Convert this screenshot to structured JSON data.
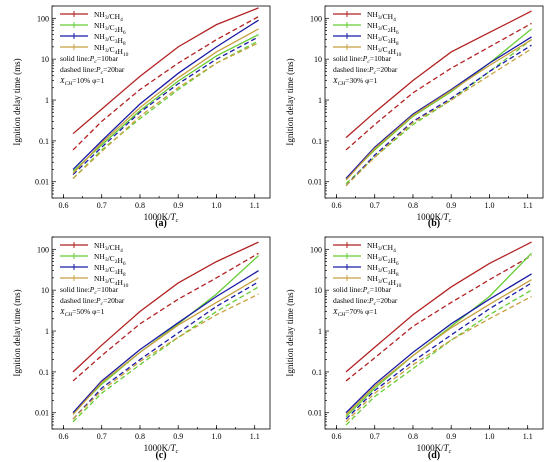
{
  "chart_data": [
    {
      "type": "line",
      "panel_label": "(a)",
      "xlabel": "1000K/T_c",
      "ylabel": "Ignition delay time (ms)",
      "xlim": [
        0.57,
        1.14
      ],
      "xticks": [
        "0.6",
        "0.7",
        "0.8",
        "0.9",
        "1.0",
        "1.1"
      ],
      "yscale": "log",
      "ylim": [
        0.004,
        200
      ],
      "yticks": [
        "0.01",
        "0.1",
        "1",
        "10",
        "100"
      ],
      "legend": [
        "NH3/CH4",
        "NH3/C2H6",
        "NH3/C3H8",
        "NH3/C4H10"
      ],
      "notes": [
        "solid line:Pc=10bar",
        "dashed line:Pc=20bar",
        "XCH=10%  φ=1"
      ],
      "x": [
        0.625,
        0.7,
        0.8,
        0.9,
        1.0,
        1.11
      ],
      "series": [
        {
          "name": "NH3/CH4",
          "style": "solid",
          "color": "#b22222",
          "values": [
            0.15,
            0.6,
            3.8,
            20,
            70,
            180
          ]
        },
        {
          "name": "NH3/CH4",
          "style": "dashed",
          "color": "#b22222",
          "values": [
            0.06,
            0.3,
            1.8,
            8,
            30,
            110
          ]
        },
        {
          "name": "NH3/C2H6",
          "style": "solid",
          "color": "#66cc33",
          "values": [
            0.018,
            0.08,
            0.55,
            2.9,
            12,
            40
          ]
        },
        {
          "name": "NH3/C2H6",
          "style": "dashed",
          "color": "#66cc33",
          "values": [
            0.012,
            0.06,
            0.35,
            1.8,
            8,
            28
          ]
        },
        {
          "name": "NH3/C3H8",
          "style": "solid",
          "color": "#1a1aa6",
          "values": [
            0.02,
            0.1,
            0.8,
            4.5,
            20,
            90
          ]
        },
        {
          "name": "NH3/C3H8",
          "style": "dashed",
          "color": "#1a1aa6",
          "values": [
            0.015,
            0.07,
            0.5,
            2.5,
            10,
            35
          ]
        },
        {
          "name": "NH3/C4H10",
          "style": "solid",
          "color": "#c8a040",
          "values": [
            0.016,
            0.09,
            0.65,
            3.5,
            15,
            55
          ]
        },
        {
          "name": "NH3/C4H10",
          "style": "dashed",
          "color": "#c8a040",
          "values": [
            0.012,
            0.055,
            0.4,
            2,
            8,
            25
          ]
        }
      ]
    },
    {
      "type": "line",
      "panel_label": "(b)",
      "xlabel": "1000K/T_c",
      "ylabel": "Ignition delay time (ms)",
      "xlim": [
        0.57,
        1.14
      ],
      "xticks": [
        "0.6",
        "0.7",
        "0.8",
        "0.9",
        "1.0",
        "1.1"
      ],
      "yscale": "log",
      "ylim": [
        0.004,
        200
      ],
      "yticks": [
        "0.01",
        "0.1",
        "1",
        "10",
        "100"
      ],
      "legend": [
        "NH3/CH4",
        "NH3/C2H6",
        "NH3/C3H8",
        "NH3/C4H10"
      ],
      "notes": [
        "solid line:Pc=10bar",
        "dashed line:Pc=20bar",
        "XCH=30%  φ=1"
      ],
      "x": [
        0.625,
        0.7,
        0.8,
        0.9,
        1.0,
        1.11
      ],
      "series": [
        {
          "name": "NH3/CH4",
          "style": "solid",
          "color": "#b22222",
          "values": [
            0.12,
            0.5,
            3,
            15,
            45,
            150
          ]
        },
        {
          "name": "NH3/CH4",
          "style": "dashed",
          "color": "#b22222",
          "values": [
            0.06,
            0.25,
            1.5,
            6,
            20,
            75
          ]
        },
        {
          "name": "NH3/C2H6",
          "style": "solid",
          "color": "#66cc33",
          "values": [
            0.012,
            0.06,
            0.4,
            1.6,
            8,
            55
          ]
        },
        {
          "name": "NH3/C2H6",
          "style": "dashed",
          "color": "#66cc33",
          "values": [
            0.009,
            0.04,
            0.25,
            1,
            5,
            30
          ]
        },
        {
          "name": "NH3/C3H8",
          "style": "solid",
          "color": "#1a1aa6",
          "values": [
            0.012,
            0.07,
            0.45,
            1.8,
            8,
            35
          ]
        },
        {
          "name": "NH3/C3H8",
          "style": "dashed",
          "color": "#1a1aa6",
          "values": [
            0.008,
            0.045,
            0.3,
            1.1,
            5,
            22
          ]
        },
        {
          "name": "NH3/C4H10",
          "style": "solid",
          "color": "#c8a040",
          "values": [
            0.011,
            0.065,
            0.42,
            1.7,
            7,
            30
          ]
        },
        {
          "name": "NH3/C4H10",
          "style": "dashed",
          "color": "#c8a040",
          "values": [
            0.008,
            0.04,
            0.28,
            1,
            4,
            18
          ]
        }
      ]
    },
    {
      "type": "line",
      "panel_label": "(c)",
      "xlabel": "1000K/T_c",
      "ylabel": "Ignition delay time (ms)",
      "xlim": [
        0.57,
        1.14
      ],
      "xticks": [
        "0.6",
        "0.7",
        "0.8",
        "0.9",
        "1.0",
        "1.1"
      ],
      "yscale": "log",
      "ylim": [
        0.004,
        200
      ],
      "yticks": [
        "0.01",
        "0.1",
        "1",
        "10",
        "100"
      ],
      "legend": [
        "NH3/CH4",
        "NH3/C2H6",
        "NH3/C3H8",
        "NH3/C4H10"
      ],
      "notes": [
        "solid line:Pc=10bar",
        "dashed line:Pc=20bar",
        "XCH=50%  φ=1"
      ],
      "x": [
        0.625,
        0.7,
        0.8,
        0.9,
        1.0,
        1.11
      ],
      "series": [
        {
          "name": "NH3/CH4",
          "style": "solid",
          "color": "#b22222",
          "values": [
            0.1,
            0.45,
            3,
            15,
            50,
            150
          ]
        },
        {
          "name": "NH3/CH4",
          "style": "dashed",
          "color": "#b22222",
          "values": [
            0.06,
            0.25,
            1.5,
            6,
            20,
            80
          ]
        },
        {
          "name": "NH3/C2H6",
          "style": "solid",
          "color": "#66cc33",
          "values": [
            0.01,
            0.05,
            0.3,
            1.5,
            8,
            70
          ]
        },
        {
          "name": "NH3/C2H6",
          "style": "dashed",
          "color": "#66cc33",
          "values": [
            0.006,
            0.03,
            0.15,
            0.7,
            3,
            12
          ]
        },
        {
          "name": "NH3/C3H8",
          "style": "solid",
          "color": "#1a1aa6",
          "values": [
            0.01,
            0.06,
            0.35,
            1.6,
            7,
            30
          ]
        },
        {
          "name": "NH3/C3H8",
          "style": "dashed",
          "color": "#1a1aa6",
          "values": [
            0.007,
            0.04,
            0.2,
            0.9,
            4,
            16
          ]
        },
        {
          "name": "NH3/C4H10",
          "style": "solid",
          "color": "#c8a040",
          "values": [
            0.009,
            0.055,
            0.3,
            1.4,
            5,
            20
          ]
        },
        {
          "name": "NH3/C4H10",
          "style": "dashed",
          "color": "#c8a040",
          "values": [
            0.007,
            0.035,
            0.18,
            0.7,
            2.5,
            8
          ]
        }
      ]
    },
    {
      "type": "line",
      "panel_label": "(d)",
      "xlabel": "1000K/T_c",
      "ylabel": "Ignition delay time (ms)",
      "xlim": [
        0.57,
        1.14
      ],
      "xticks": [
        "0.6",
        "0.7",
        "0.8",
        "0.9",
        "1.0",
        "1.1"
      ],
      "yscale": "log",
      "ylim": [
        0.004,
        200
      ],
      "yticks": [
        "0.01",
        "0.1",
        "1",
        "10",
        "100"
      ],
      "legend": [
        "NH3/CH4",
        "NH3/C2H6",
        "NH3/C3H8",
        "NH3/C4H10"
      ],
      "notes": [
        "solid line:Pc=10bar",
        "dashed line:Pc=20bar",
        "XCH=70%  φ=1"
      ],
      "x": [
        0.625,
        0.7,
        0.8,
        0.9,
        1.0,
        1.11
      ],
      "series": [
        {
          "name": "NH3/CH4",
          "style": "solid",
          "color": "#b22222",
          "values": [
            0.1,
            0.4,
            2.5,
            12,
            45,
            150
          ]
        },
        {
          "name": "NH3/CH4",
          "style": "dashed",
          "color": "#b22222",
          "values": [
            0.06,
            0.22,
            1.3,
            5,
            18,
            70
          ]
        },
        {
          "name": "NH3/C2H6",
          "style": "solid",
          "color": "#66cc33",
          "values": [
            0.008,
            0.04,
            0.25,
            1.3,
            7,
            80
          ]
        },
        {
          "name": "NH3/C2H6",
          "style": "dashed",
          "color": "#66cc33",
          "values": [
            0.005,
            0.025,
            0.12,
            0.6,
            2.5,
            10
          ]
        },
        {
          "name": "NH3/C3H8",
          "style": "solid",
          "color": "#1a1aa6",
          "values": [
            0.01,
            0.05,
            0.3,
            1.5,
            6,
            25
          ]
        },
        {
          "name": "NH3/C3H8",
          "style": "dashed",
          "color": "#1a1aa6",
          "values": [
            0.007,
            0.035,
            0.18,
            0.8,
            3.5,
            15
          ]
        },
        {
          "name": "NH3/C4H10",
          "style": "solid",
          "color": "#c8a040",
          "values": [
            0.009,
            0.045,
            0.25,
            1.2,
            4.5,
            18
          ]
        },
        {
          "name": "NH3/C4H10",
          "style": "dashed",
          "color": "#c8a040",
          "values": [
            0.006,
            0.03,
            0.15,
            0.6,
            2,
            7
          ]
        }
      ]
    }
  ]
}
